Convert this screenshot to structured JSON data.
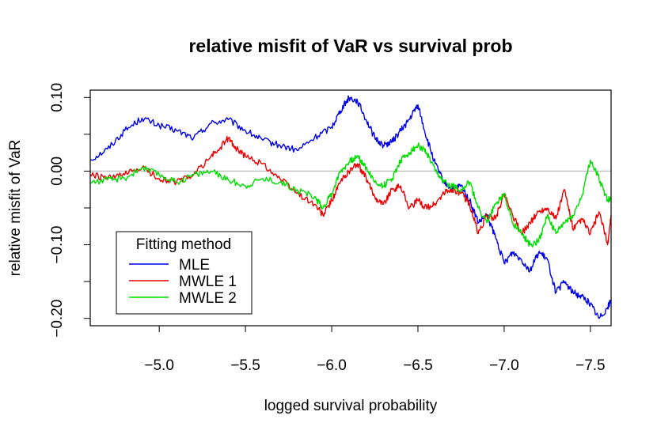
{
  "chart_data": {
    "type": "line",
    "title": "relative misfit of VaR vs survival prob",
    "xlabel": "logged survival probability",
    "ylabel": "relative misfit of VaR",
    "xlim": [
      -4.6,
      -7.62
    ],
    "ylim": [
      -0.21,
      0.11
    ],
    "x_ticks": [
      -5.0,
      -5.5,
      -6.0,
      -6.5,
      -7.0,
      -7.5
    ],
    "x_tick_labels": [
      "−5.0",
      "−5.5",
      "−6.0",
      "−6.5",
      "−7.0",
      "−7.5"
    ],
    "y_ticks": [
      0.1,
      0.0,
      -0.1,
      -0.2
    ],
    "y_tick_labels": [
      "0.10",
      "0.00",
      "−0.10",
      "−0.20"
    ],
    "y_minor_ticks": [
      0.05,
      -0.05,
      -0.15
    ],
    "reference_line": {
      "y": 0.0,
      "color": "#bebebe"
    },
    "legend": {
      "title": "Fitting method",
      "position": "bottom-left",
      "entries": [
        "MLE",
        "MWLE 1",
        "MWLE 2"
      ]
    },
    "series": [
      {
        "name": "MLE",
        "color": "#0000ee",
        "x": [
          -4.6,
          -4.7,
          -4.8,
          -4.9,
          -5.0,
          -5.1,
          -5.2,
          -5.3,
          -5.4,
          -5.5,
          -5.6,
          -5.7,
          -5.8,
          -5.9,
          -6.0,
          -6.05,
          -6.1,
          -6.15,
          -6.2,
          -6.25,
          -6.3,
          -6.35,
          -6.4,
          -6.45,
          -6.5,
          -6.55,
          -6.6,
          -6.65,
          -6.7,
          -6.75,
          -6.8,
          -6.85,
          -6.9,
          -6.95,
          -7.0,
          -7.05,
          -7.1,
          -7.15,
          -7.2,
          -7.25,
          -7.3,
          -7.35,
          -7.4,
          -7.45,
          -7.5,
          -7.55,
          -7.6,
          -7.62
        ],
        "values": [
          0.015,
          0.03,
          0.055,
          0.072,
          0.062,
          0.055,
          0.045,
          0.065,
          0.07,
          0.055,
          0.042,
          0.035,
          0.028,
          0.045,
          0.06,
          0.082,
          0.1,
          0.095,
          0.07,
          0.045,
          0.035,
          0.04,
          0.055,
          0.07,
          0.09,
          0.045,
          0.01,
          -0.015,
          -0.025,
          -0.02,
          -0.04,
          -0.07,
          -0.06,
          -0.09,
          -0.125,
          -0.11,
          -0.12,
          -0.135,
          -0.11,
          -0.12,
          -0.165,
          -0.15,
          -0.165,
          -0.17,
          -0.18,
          -0.2,
          -0.185,
          -0.175
        ]
      },
      {
        "name": "MWLE 1",
        "color": "#ee0000",
        "x": [
          -4.6,
          -4.7,
          -4.8,
          -4.9,
          -5.0,
          -5.1,
          -5.2,
          -5.3,
          -5.35,
          -5.4,
          -5.45,
          -5.5,
          -5.6,
          -5.7,
          -5.8,
          -5.9,
          -5.95,
          -6.0,
          -6.05,
          -6.1,
          -6.15,
          -6.2,
          -6.25,
          -6.3,
          -6.35,
          -6.4,
          -6.45,
          -6.5,
          -6.55,
          -6.6,
          -6.65,
          -6.7,
          -6.75,
          -6.8,
          -6.85,
          -6.9,
          -6.95,
          -7.0,
          -7.05,
          -7.1,
          -7.15,
          -7.2,
          -7.25,
          -7.3,
          -7.35,
          -7.4,
          -7.45,
          -7.5,
          -7.55,
          -7.6,
          -7.62
        ],
        "values": [
          -0.005,
          -0.01,
          -0.005,
          0.005,
          -0.01,
          -0.015,
          -0.005,
          0.02,
          0.03,
          0.045,
          0.03,
          0.02,
          0.01,
          -0.01,
          -0.03,
          -0.045,
          -0.06,
          -0.04,
          -0.015,
          0.0,
          0.01,
          -0.01,
          -0.035,
          -0.045,
          -0.025,
          -0.02,
          -0.05,
          -0.04,
          -0.05,
          -0.045,
          -0.03,
          -0.025,
          -0.03,
          -0.045,
          -0.085,
          -0.06,
          -0.065,
          -0.03,
          -0.06,
          -0.085,
          -0.07,
          -0.055,
          -0.05,
          -0.065,
          -0.025,
          -0.08,
          -0.065,
          -0.085,
          -0.055,
          -0.1,
          -0.06
        ]
      },
      {
        "name": "MWLE 2",
        "color": "#00dd00",
        "x": [
          -4.6,
          -4.7,
          -4.8,
          -4.9,
          -5.0,
          -5.1,
          -5.2,
          -5.3,
          -5.4,
          -5.5,
          -5.6,
          -5.7,
          -5.8,
          -5.9,
          -5.95,
          -6.0,
          -6.05,
          -6.1,
          -6.15,
          -6.2,
          -6.25,
          -6.3,
          -6.35,
          -6.4,
          -6.45,
          -6.5,
          -6.55,
          -6.6,
          -6.65,
          -6.7,
          -6.75,
          -6.8,
          -6.85,
          -6.9,
          -6.95,
          -7.0,
          -7.05,
          -7.1,
          -7.15,
          -7.2,
          -7.25,
          -7.3,
          -7.35,
          -7.4,
          -7.45,
          -7.5,
          -7.55,
          -7.6,
          -7.62
        ],
        "values": [
          -0.015,
          -0.012,
          -0.01,
          0.005,
          -0.005,
          -0.015,
          -0.005,
          0.0,
          -0.012,
          -0.02,
          -0.01,
          -0.015,
          -0.025,
          -0.035,
          -0.05,
          -0.03,
          0.0,
          0.012,
          0.02,
          0.005,
          -0.015,
          -0.02,
          -0.01,
          0.015,
          0.025,
          0.035,
          0.025,
          0.0,
          -0.015,
          -0.02,
          -0.025,
          -0.015,
          -0.05,
          -0.07,
          -0.045,
          -0.03,
          -0.07,
          -0.085,
          -0.1,
          -0.095,
          -0.06,
          -0.085,
          -0.07,
          -0.06,
          -0.035,
          0.015,
          -0.01,
          -0.04,
          -0.035
        ]
      }
    ]
  }
}
